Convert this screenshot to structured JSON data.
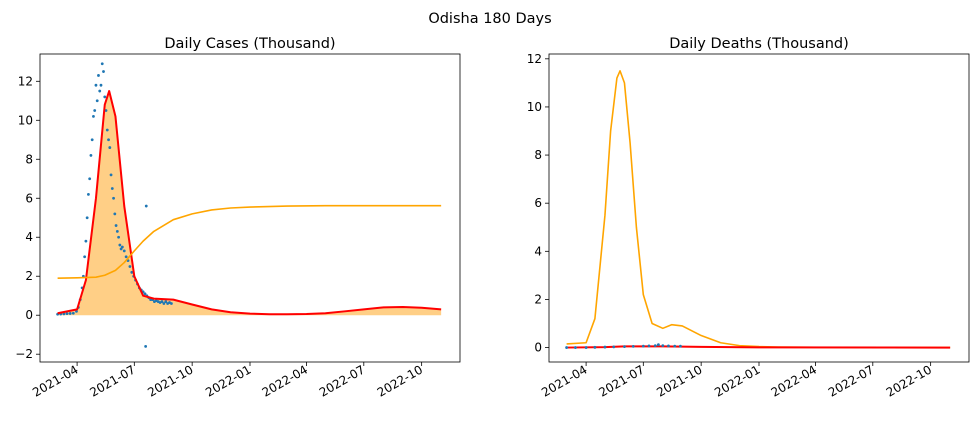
{
  "figure": {
    "suptitle": "Odisha 180 Days"
  },
  "colors": {
    "scatter": "#1f77b4",
    "fit_line": "#ff0000",
    "secondary_line": "#ffa500",
    "fill": "#ffcc80",
    "background": "#ffffff",
    "axes": "#000000"
  },
  "chart_data": [
    {
      "type": "line",
      "title": "Daily Cases (Thousand)",
      "xlabel": "",
      "ylabel": "",
      "x_axis_type": "date",
      "xlim": [
        "2021-02-01",
        "2022-12-01"
      ],
      "ylim": [
        -2.4,
        13.4
      ],
      "x_ticks": [
        "2021-04",
        "2021-07",
        "2021-10",
        "2022-01",
        "2022-04",
        "2022-07",
        "2022-10"
      ],
      "y_ticks": [
        -2,
        0,
        2,
        4,
        6,
        8,
        10,
        12
      ],
      "grid": false,
      "legend": "none",
      "filled_area": {
        "under": "red fit curve",
        "color": "#ffcc80"
      },
      "series": [
        {
          "style": "scatter",
          "color": "#1f77b4",
          "x": [
            "2021-03-01",
            "2021-03-06",
            "2021-03-11",
            "2021-03-16",
            "2021-03-21",
            "2021-03-26",
            "2021-03-31",
            "2021-04-03",
            "2021-04-06",
            "2021-04-09",
            "2021-04-11",
            "2021-04-13",
            "2021-04-15",
            "2021-04-17",
            "2021-04-19",
            "2021-04-21",
            "2021-04-23",
            "2021-04-25",
            "2021-04-27",
            "2021-04-29",
            "2021-05-01",
            "2021-05-03",
            "2021-05-05",
            "2021-05-07",
            "2021-05-09",
            "2021-05-11",
            "2021-05-13",
            "2021-05-15",
            "2021-05-17",
            "2021-05-19",
            "2021-05-21",
            "2021-05-23",
            "2021-05-25",
            "2021-05-27",
            "2021-05-29",
            "2021-05-31",
            "2021-06-02",
            "2021-06-04",
            "2021-06-06",
            "2021-06-08",
            "2021-06-10",
            "2021-06-12",
            "2021-06-15",
            "2021-06-18",
            "2021-06-21",
            "2021-06-24",
            "2021-06-27",
            "2021-06-30",
            "2021-07-03",
            "2021-07-06",
            "2021-07-09",
            "2021-07-12",
            "2021-07-15",
            "2021-07-18",
            "2021-07-21",
            "2021-07-24",
            "2021-07-27",
            "2021-07-30",
            "2021-08-02",
            "2021-08-05",
            "2021-08-08",
            "2021-08-11",
            "2021-08-14",
            "2021-08-17",
            "2021-08-20",
            "2021-08-23",
            "2021-08-26",
            "2021-08-29",
            "2021-07-20",
            "2021-07-19"
          ],
          "y": [
            0.05,
            0.06,
            0.07,
            0.08,
            0.09,
            0.1,
            0.2,
            0.4,
            0.8,
            1.4,
            2.0,
            3.0,
            3.8,
            5.0,
            6.2,
            7.0,
            8.2,
            9.0,
            10.2,
            10.5,
            11.8,
            11.0,
            12.3,
            11.5,
            11.8,
            12.9,
            12.5,
            11.2,
            10.5,
            9.5,
            9.0,
            8.6,
            7.2,
            6.5,
            6.0,
            5.2,
            4.6,
            4.3,
            4.0,
            3.6,
            3.4,
            3.5,
            3.3,
            3.0,
            2.8,
            2.5,
            2.2,
            2.0,
            1.8,
            1.6,
            1.4,
            1.3,
            1.2,
            1.1,
            1.0,
            0.9,
            0.8,
            0.8,
            0.7,
            0.75,
            0.7,
            0.65,
            0.7,
            0.6,
            0.7,
            0.6,
            0.65,
            0.6,
            5.6,
            -1.6
          ]
        },
        {
          "style": "line",
          "color": "#ff0000",
          "x": [
            "2021-03-01",
            "2021-04-01",
            "2021-04-15",
            "2021-05-01",
            "2021-05-15",
            "2021-05-22",
            "2021-06-01",
            "2021-06-15",
            "2021-07-01",
            "2021-07-15",
            "2021-08-01",
            "2021-09-01",
            "2021-10-01",
            "2021-11-01",
            "2021-12-01",
            "2022-01-01",
            "2022-02-01",
            "2022-03-01",
            "2022-04-01",
            "2022-05-01",
            "2022-06-01",
            "2022-07-01",
            "2022-08-01",
            "2022-09-01",
            "2022-10-01",
            "2022-11-01"
          ],
          "y": [
            0.1,
            0.3,
            1.8,
            6.0,
            10.8,
            11.5,
            10.2,
            5.6,
            2.0,
            1.0,
            0.85,
            0.8,
            0.55,
            0.3,
            0.15,
            0.08,
            0.05,
            0.05,
            0.06,
            0.1,
            0.2,
            0.3,
            0.4,
            0.42,
            0.38,
            0.3
          ]
        },
        {
          "style": "line",
          "color": "#ffa500",
          "x": [
            "2021-03-01",
            "2021-04-01",
            "2021-05-01",
            "2021-05-15",
            "2021-06-01",
            "2021-06-15",
            "2021-07-01",
            "2021-07-15",
            "2021-08-01",
            "2021-09-01",
            "2021-10-01",
            "2021-11-01",
            "2021-12-01",
            "2022-01-01",
            "2022-03-01",
            "2022-05-01",
            "2022-07-01",
            "2022-09-01",
            "2022-11-01"
          ],
          "y": [
            1.9,
            1.92,
            1.95,
            2.05,
            2.3,
            2.7,
            3.3,
            3.8,
            4.3,
            4.9,
            5.2,
            5.4,
            5.5,
            5.55,
            5.6,
            5.62,
            5.62,
            5.62,
            5.62
          ]
        }
      ]
    },
    {
      "type": "line",
      "title": "Daily Deaths (Thousand)",
      "xlabel": "",
      "ylabel": "",
      "x_axis_type": "date",
      "xlim": [
        "2021-02-01",
        "2022-12-01"
      ],
      "ylim": [
        -0.6,
        12.2
      ],
      "x_ticks": [
        "2021-04",
        "2021-07",
        "2021-10",
        "2022-01",
        "2022-04",
        "2022-07",
        "2022-10"
      ],
      "y_ticks": [
        0,
        2,
        4,
        6,
        8,
        10,
        12
      ],
      "grid": false,
      "legend": "none",
      "series": [
        {
          "style": "line",
          "color": "#ffa500",
          "x": [
            "2021-03-01",
            "2021-04-01",
            "2021-04-15",
            "2021-05-01",
            "2021-05-10",
            "2021-05-20",
            "2021-05-25",
            "2021-06-01",
            "2021-06-10",
            "2021-06-20",
            "2021-07-01",
            "2021-07-15",
            "2021-08-01",
            "2021-08-15",
            "2021-09-01",
            "2021-10-01",
            "2021-11-01",
            "2021-12-01",
            "2022-01-01",
            "2022-02-01",
            "2022-04-01",
            "2022-07-01",
            "2022-11-01"
          ],
          "y": [
            0.15,
            0.2,
            1.2,
            5.5,
            9.0,
            11.2,
            11.5,
            11.0,
            8.5,
            5.0,
            2.2,
            1.0,
            0.8,
            0.95,
            0.9,
            0.5,
            0.2,
            0.08,
            0.04,
            0.02,
            0.01,
            0.005,
            0.005
          ]
        },
        {
          "style": "line",
          "color": "#ff0000",
          "x": [
            "2021-03-01",
            "2021-05-01",
            "2021-06-01",
            "2021-08-01",
            "2021-10-01",
            "2022-01-01",
            "2022-11-01"
          ],
          "y": [
            0.0,
            0.02,
            0.05,
            0.05,
            0.03,
            0.01,
            0.0
          ]
        },
        {
          "style": "scatter",
          "color": "#1f77b4",
          "x": [
            "2021-03-01",
            "2021-03-15",
            "2021-04-01",
            "2021-04-15",
            "2021-05-01",
            "2021-05-15",
            "2021-06-01",
            "2021-06-15",
            "2021-07-01",
            "2021-07-10",
            "2021-07-20",
            "2021-07-25",
            "2021-08-01",
            "2021-08-10",
            "2021-08-20",
            "2021-08-29"
          ],
          "y": [
            0.0,
            0.0,
            0.0,
            0.01,
            0.02,
            0.03,
            0.04,
            0.05,
            0.06,
            0.07,
            0.08,
            0.12,
            0.08,
            0.07,
            0.06,
            0.06
          ]
        }
      ]
    }
  ]
}
